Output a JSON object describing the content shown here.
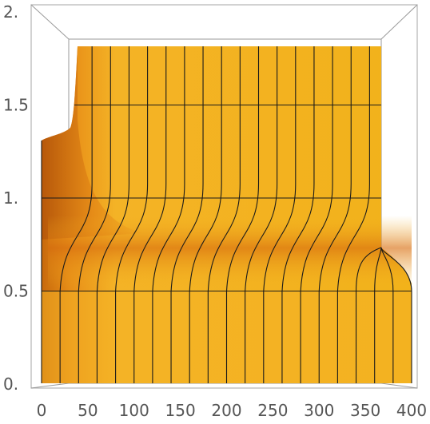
{
  "chart_data": {
    "type": "area",
    "description_of_axes": "",
    "x_ticks": [
      "0",
      "50",
      "100",
      "150",
      "200",
      "250",
      "300",
      "350",
      "400"
    ],
    "y_ticks": [
      "0.",
      "0.5",
      "1.",
      "1.5",
      "2."
    ],
    "xlim": [
      0,
      400
    ],
    "ylim": [
      0,
      2
    ],
    "grid": true,
    "surface_color": "#f2b21a",
    "shadow_color": "#d9730f",
    "mesh_x": [
      0,
      20,
      40,
      60,
      80,
      100,
      120,
      140,
      160,
      180,
      200,
      220,
      240,
      260,
      280,
      300,
      320,
      340,
      360,
      380,
      400
    ],
    "mesh_y": [
      0.5,
      1.0,
      1.5
    ]
  }
}
